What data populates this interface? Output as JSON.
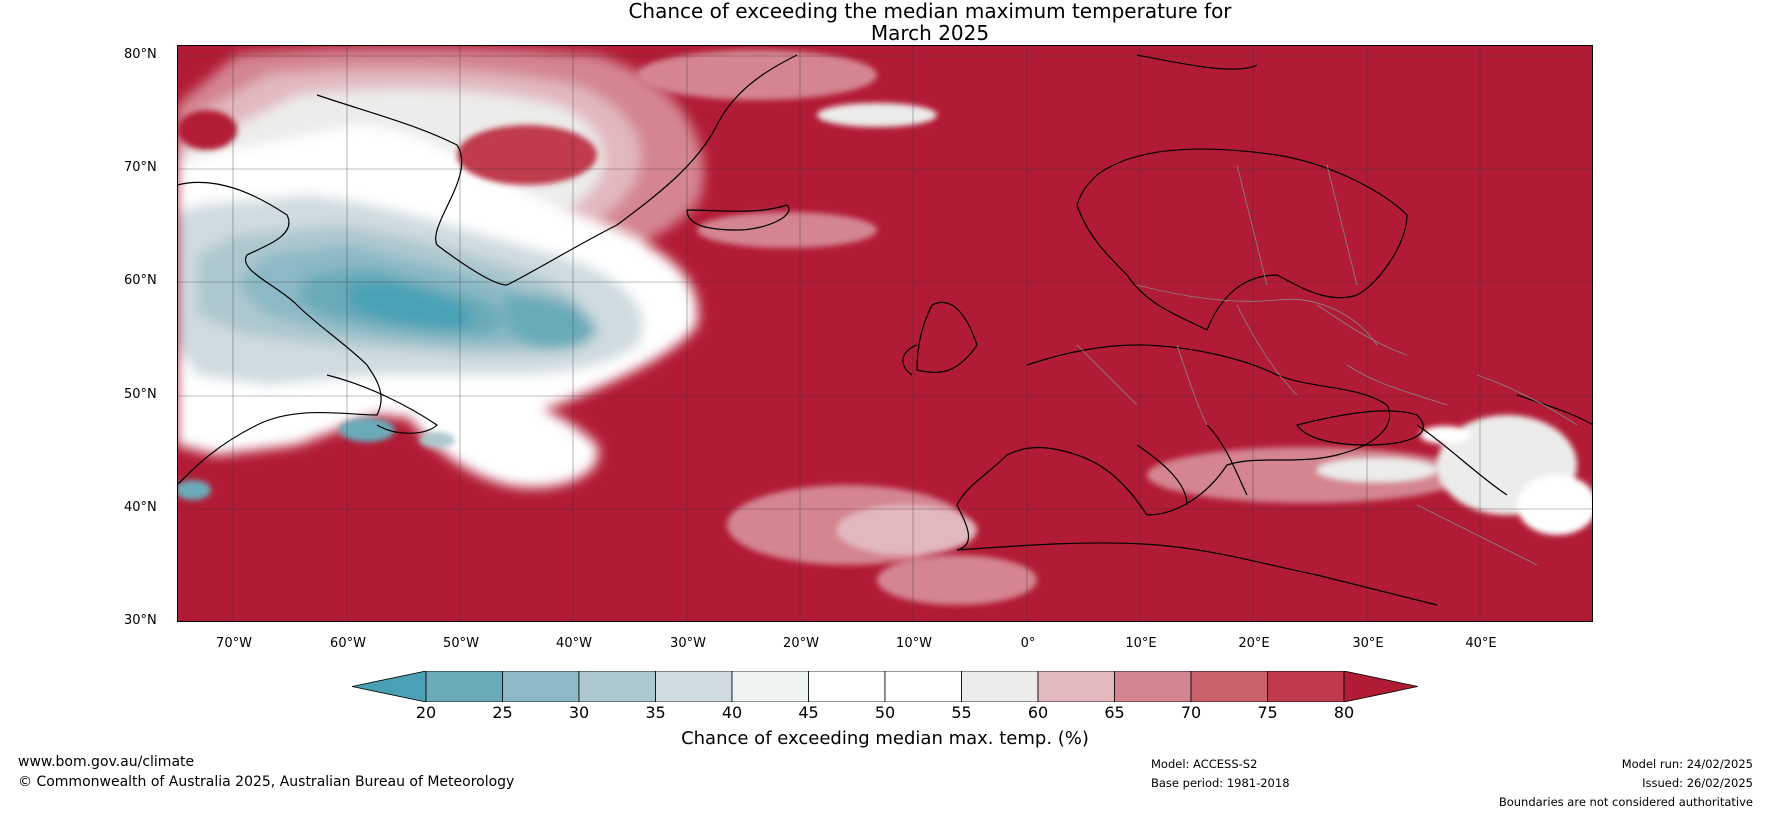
{
  "title": {
    "line1": "Chance of exceeding the median maximum temperature for",
    "line2": "March 2025"
  },
  "map": {
    "extent": {
      "west": -75,
      "east": 50,
      "south": 30,
      "north": 81
    },
    "lat_labels": [
      "80°N",
      "70°N",
      "60°N",
      "50°N",
      "40°N",
      "30°N"
    ],
    "lat_values": [
      80,
      70,
      60,
      50,
      40,
      30
    ],
    "lon_labels": [
      "70°W",
      "60°W",
      "50°W",
      "40°W",
      "30°W",
      "20°W",
      "10°W",
      "0°",
      "10°E",
      "20°E",
      "30°E",
      "40°E"
    ],
    "lon_values": [
      -70,
      -60,
      -50,
      -40,
      -30,
      -20,
      -10,
      0,
      10,
      20,
      30,
      40
    ],
    "colors": {
      "ocean_high": "#b21b35",
      "land_line": "#000000",
      "border_line": "#888888",
      "grid_line": "#333333"
    }
  },
  "colorbar": {
    "ticks": [
      "20",
      "25",
      "30",
      "35",
      "40",
      "45",
      "50",
      "55",
      "60",
      "65",
      "70",
      "75",
      "80"
    ],
    "colors": [
      "#4aa1b6",
      "#6aabba",
      "#8bb9c5",
      "#adc7cf",
      "#cfdbdf",
      "#eef3f4",
      "#ffffff",
      "#ffffff",
      "#ececea",
      "#e2b8bf",
      "#d48590",
      "#c9606c",
      "#c03a4d",
      "#b21b35"
    ],
    "label": "Chance of exceeding median max. temp. (%)"
  },
  "footer": {
    "website": "www.bom.gov.au/climate",
    "copyright": "© Commonwealth of Australia 2025, Australian Bureau of Meteorology",
    "model": "Model: ACCESS-S2",
    "base_period": "Base period: 1981-2018",
    "model_run": "Model run: 24/02/2025",
    "issued": "Issued: 26/02/2025",
    "disclaimer": "Boundaries are not considered authoritative"
  }
}
